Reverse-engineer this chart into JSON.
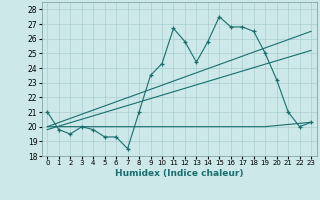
{
  "xlabel": "Humidex (Indice chaleur)",
  "background_color": "#cce8e8",
  "grid_color": "#aacfcf",
  "line_color": "#1a6e6e",
  "xlim": [
    -0.5,
    23.5
  ],
  "ylim": [
    18,
    28.5
  ],
  "yticks": [
    18,
    19,
    20,
    21,
    22,
    23,
    24,
    25,
    26,
    27,
    28
  ],
  "xticks": [
    0,
    1,
    2,
    3,
    4,
    5,
    6,
    7,
    8,
    9,
    10,
    11,
    12,
    13,
    14,
    15,
    16,
    17,
    18,
    19,
    20,
    21,
    22,
    23
  ],
  "main_line_x": [
    0,
    1,
    2,
    3,
    4,
    5,
    6,
    7,
    8,
    9,
    10,
    11,
    12,
    13,
    14,
    15,
    16,
    17,
    18,
    19,
    20,
    21,
    22,
    23
  ],
  "main_line_y": [
    21.0,
    19.8,
    19.5,
    20.0,
    19.8,
    19.3,
    19.3,
    18.5,
    21.0,
    23.5,
    24.3,
    26.7,
    25.8,
    24.4,
    25.8,
    27.5,
    26.8,
    26.8,
    26.5,
    25.0,
    23.2,
    21.0,
    20.0,
    20.3
  ],
  "trend1_x": [
    0,
    23
  ],
  "trend1_y": [
    20.0,
    26.5
  ],
  "trend2_x": [
    0,
    23
  ],
  "trend2_y": [
    19.8,
    25.2
  ],
  "flat_line_x": [
    0,
    13,
    19,
    23
  ],
  "flat_line_y": [
    20.0,
    20.0,
    20.0,
    20.3
  ]
}
